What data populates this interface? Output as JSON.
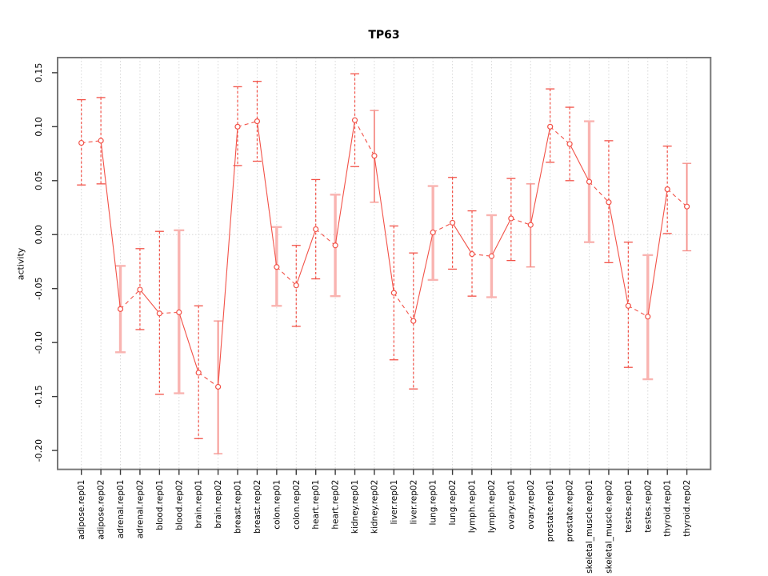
{
  "chart_data": {
    "type": "line",
    "title": "TP63",
    "xlabel": "",
    "ylabel": "activity",
    "legend": "none",
    "grid": {
      "vertical": "dotted line at every category",
      "horizontal": "dotted line at y=0 only"
    },
    "ylim": [
      -0.2175,
      0.164
    ],
    "yticks": [
      0.15,
      0.1,
      0.05,
      0.0,
      -0.05,
      -0.1,
      -0.15,
      -0.2
    ],
    "ytick_labels": [
      "0.15",
      "0.10",
      "0.05",
      "0.00",
      "-0.05",
      "-0.10",
      "-0.15",
      "-0.20"
    ],
    "categories": [
      "adipose.rep01",
      "adipose.rep02",
      "adrenal.rep01",
      "adrenal.rep02",
      "blood.rep01",
      "blood.rep02",
      "brain.rep01",
      "brain.rep02",
      "breast.rep01",
      "breast.rep02",
      "colon.rep01",
      "colon.rep02",
      "heart.rep01",
      "heart.rep02",
      "kidney.rep01",
      "kidney.rep02",
      "liver.rep01",
      "liver.rep02",
      "lung.rep01",
      "lung.rep02",
      "lymph.rep01",
      "lymph.rep02",
      "ovary.rep01",
      "ovary.rep02",
      "prostate.rep01",
      "prostate.rep02",
      "skeletal_muscle.rep01",
      "skeletal_muscle.rep02",
      "testes.rep01",
      "testes.rep02",
      "thyroid.rep01",
      "thyroid.rep02"
    ],
    "series": [
      {
        "name": "activity",
        "values": [
          0.085,
          0.087,
          -0.069,
          -0.051,
          -0.073,
          -0.072,
          -0.128,
          -0.141,
          0.1,
          0.105,
          -0.03,
          -0.047,
          0.005,
          -0.01,
          0.106,
          0.073,
          -0.054,
          -0.08,
          0.002,
          0.011,
          -0.018,
          -0.02,
          0.015,
          0.009,
          0.1,
          0.084,
          0.049,
          0.03,
          -0.066,
          -0.076,
          0.042,
          0.026
        ],
        "error_high": [
          0.125,
          0.127,
          -0.029,
          -0.013,
          0.003,
          0.004,
          -0.066,
          -0.08,
          0.137,
          0.142,
          0.007,
          -0.01,
          0.051,
          0.037,
          0.149,
          0.115,
          0.008,
          -0.017,
          0.045,
          0.053,
          0.022,
          0.018,
          0.052,
          0.047,
          0.135,
          0.118,
          0.105,
          0.087,
          -0.007,
          -0.019,
          0.082,
          0.066
        ],
        "error_low": [
          0.046,
          0.047,
          -0.109,
          -0.088,
          -0.148,
          -0.147,
          -0.189,
          -0.203,
          0.064,
          0.068,
          -0.066,
          -0.085,
          -0.041,
          -0.057,
          0.063,
          0.03,
          -0.116,
          -0.143,
          -0.042,
          -0.032,
          -0.057,
          -0.058,
          -0.024,
          -0.03,
          0.067,
          0.05,
          -0.007,
          -0.026,
          -0.123,
          -0.134,
          0.001,
          -0.015
        ]
      }
    ],
    "error_bar_styles": [
      "dash",
      "dash",
      "thick",
      "dash",
      "dash",
      "thick",
      "dash",
      "light",
      "dash",
      "dash",
      "thick",
      "dash",
      "dash",
      "thick",
      "dash",
      "light",
      "dash",
      "dash",
      "thick",
      "dash",
      "dash",
      "thick",
      "dash",
      "light",
      "dash",
      "dash",
      "thick",
      "dash",
      "dash",
      "thick",
      "dash",
      "light"
    ],
    "line_style_within_pair": "dashed",
    "line_style_between_pairs": "solid",
    "colors": {
      "line": "#f25248",
      "point": "#f25248",
      "errorbar_dash": "#f25248",
      "errorbar_thick": "#f9b4b1",
      "errorbar_light": "#f58e88",
      "grid": "#d8d8d8",
      "box": "#787878",
      "tick": "#3a3a3a",
      "text": "#000000",
      "background": "#ffffff"
    }
  }
}
